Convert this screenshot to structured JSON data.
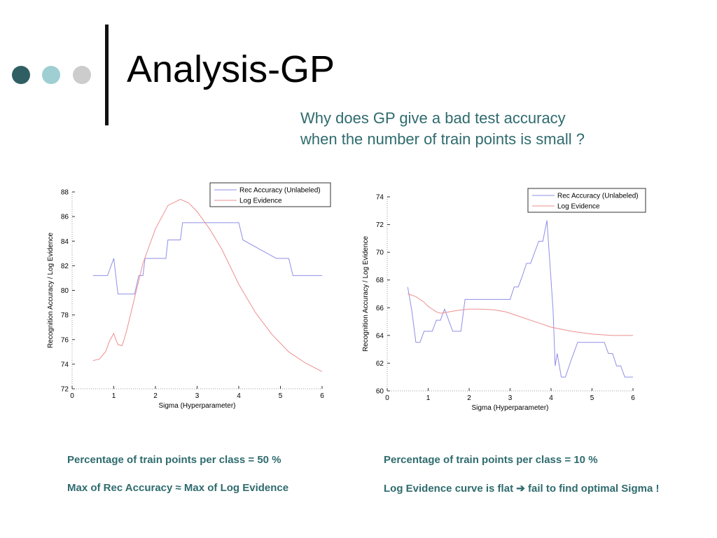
{
  "slide": {
    "title": "Analysis-GP",
    "subtitle_lines": [
      "Why does GP give a bad test accuracy",
      "when the number of train points is small ?"
    ],
    "left_caption_1": "Percentage of train points per class = 50 %",
    "left_caption_2": "Max of Rec Accuracy ≈ Max of Log Evidence",
    "right_caption_1": "Percentage of train points per class = 10 %",
    "right_caption_2_part1": "Log Evidence curve is flat ",
    "right_caption_2_arrow": "➔",
    "right_caption_2_part2": " fail to find optimal Sigma !"
  },
  "colors": {
    "accent_dark": "#2f5f63",
    "accent_light": "#9fcfd2",
    "accent_gray": "#cccccc",
    "caption_text": "#2f6b6e",
    "series_rec_accuracy": "#8f8fe8",
    "series_log_evidence": "#ee8f8f"
  },
  "chart_data": [
    {
      "type": "line",
      "title": "",
      "xlabel": "Sigma (Hyperparameter)",
      "ylabel": "Recognition Accuracy / Log Evidence",
      "xlim": [
        0,
        6
      ],
      "ylim": [
        72,
        88
      ],
      "xticks": [
        0,
        1,
        2,
        3,
        4,
        5,
        6
      ],
      "yticks": [
        72,
        74,
        76,
        78,
        80,
        82,
        84,
        86,
        88
      ],
      "legend_position": "top-right",
      "series": [
        {
          "name": "Rec Accuracy (Unlabeled)",
          "color_key": "series_rec_accuracy",
          "x": [
            0.5,
            0.85,
            1.0,
            1.1,
            1.5,
            1.6,
            1.7,
            1.75,
            2.25,
            2.3,
            2.6,
            2.65,
            4.0,
            4.1,
            4.9,
            5.2,
            5.3,
            6.0
          ],
          "y": [
            81.2,
            81.2,
            82.6,
            79.7,
            79.7,
            81.2,
            81.2,
            82.6,
            82.6,
            84.1,
            84.1,
            85.5,
            85.5,
            84.1,
            82.6,
            82.6,
            81.2,
            81.2
          ]
        },
        {
          "name": "Log Evidence",
          "color_key": "series_log_evidence",
          "x": [
            0.5,
            0.65,
            0.8,
            0.9,
            1.0,
            1.05,
            1.1,
            1.2,
            1.3,
            1.5,
            1.7,
            2.0,
            2.3,
            2.6,
            2.8,
            3.0,
            3.3,
            3.6,
            4.0,
            4.4,
            4.8,
            5.2,
            5.6,
            6.0
          ],
          "y": [
            74.3,
            74.4,
            75.0,
            75.9,
            76.5,
            76.0,
            75.6,
            75.5,
            76.6,
            79.4,
            82.2,
            85.0,
            86.9,
            87.4,
            87.1,
            86.4,
            85.0,
            83.3,
            80.5,
            78.2,
            76.4,
            75.0,
            74.1,
            73.4
          ]
        }
      ]
    },
    {
      "type": "line",
      "title": "",
      "xlabel": "Sigma (Hyperparameter)",
      "ylabel": "Recognition Accuracy / Log Evidence",
      "xlim": [
        0,
        6
      ],
      "ylim": [
        60,
        74
      ],
      "xticks": [
        0,
        1,
        2,
        3,
        4,
        5,
        6
      ],
      "yticks": [
        60,
        62,
        64,
        66,
        68,
        70,
        72,
        74
      ],
      "legend_position": "top-right",
      "series": [
        {
          "name": "Rec Accuracy (Unlabeled)",
          "color_key": "series_rec_accuracy",
          "x": [
            0.5,
            0.6,
            0.7,
            0.8,
            0.9,
            1.1,
            1.2,
            1.3,
            1.4,
            1.5,
            1.6,
            1.7,
            1.8,
            1.9,
            2.0,
            2.2,
            2.4,
            2.6,
            2.8,
            3.0,
            3.1,
            3.2,
            3.3,
            3.4,
            3.5,
            3.6,
            3.7,
            3.8,
            3.9,
            4.05,
            4.1,
            4.15,
            4.25,
            4.35,
            4.5,
            4.65,
            5.0,
            5.3,
            5.4,
            5.5,
            5.6,
            5.7,
            5.8,
            6.0
          ],
          "y": [
            67.5,
            65.8,
            63.5,
            63.5,
            64.3,
            64.3,
            65.1,
            65.1,
            65.9,
            65.1,
            64.3,
            64.3,
            64.3,
            66.6,
            66.6,
            66.6,
            66.6,
            66.6,
            66.6,
            66.6,
            67.5,
            67.5,
            68.3,
            69.2,
            69.2,
            70.0,
            70.8,
            70.8,
            72.3,
            65.8,
            61.8,
            62.7,
            61.0,
            61.0,
            62.3,
            63.5,
            63.5,
            63.5,
            62.7,
            62.7,
            61.8,
            61.8,
            61.0,
            61.0
          ]
        },
        {
          "name": "Log Evidence",
          "color_key": "series_log_evidence",
          "x": [
            0.5,
            0.7,
            0.9,
            1.0,
            1.1,
            1.2,
            1.3,
            1.5,
            1.7,
            2.0,
            2.3,
            2.6,
            2.9,
            3.2,
            3.6,
            4.0,
            4.5,
            5.0,
            5.5,
            6.0
          ],
          "y": [
            67.0,
            66.8,
            66.4,
            66.1,
            65.9,
            65.7,
            65.6,
            65.7,
            65.8,
            65.9,
            65.9,
            65.85,
            65.7,
            65.4,
            65.0,
            64.6,
            64.3,
            64.1,
            64.0,
            64.0
          ]
        }
      ]
    }
  ]
}
